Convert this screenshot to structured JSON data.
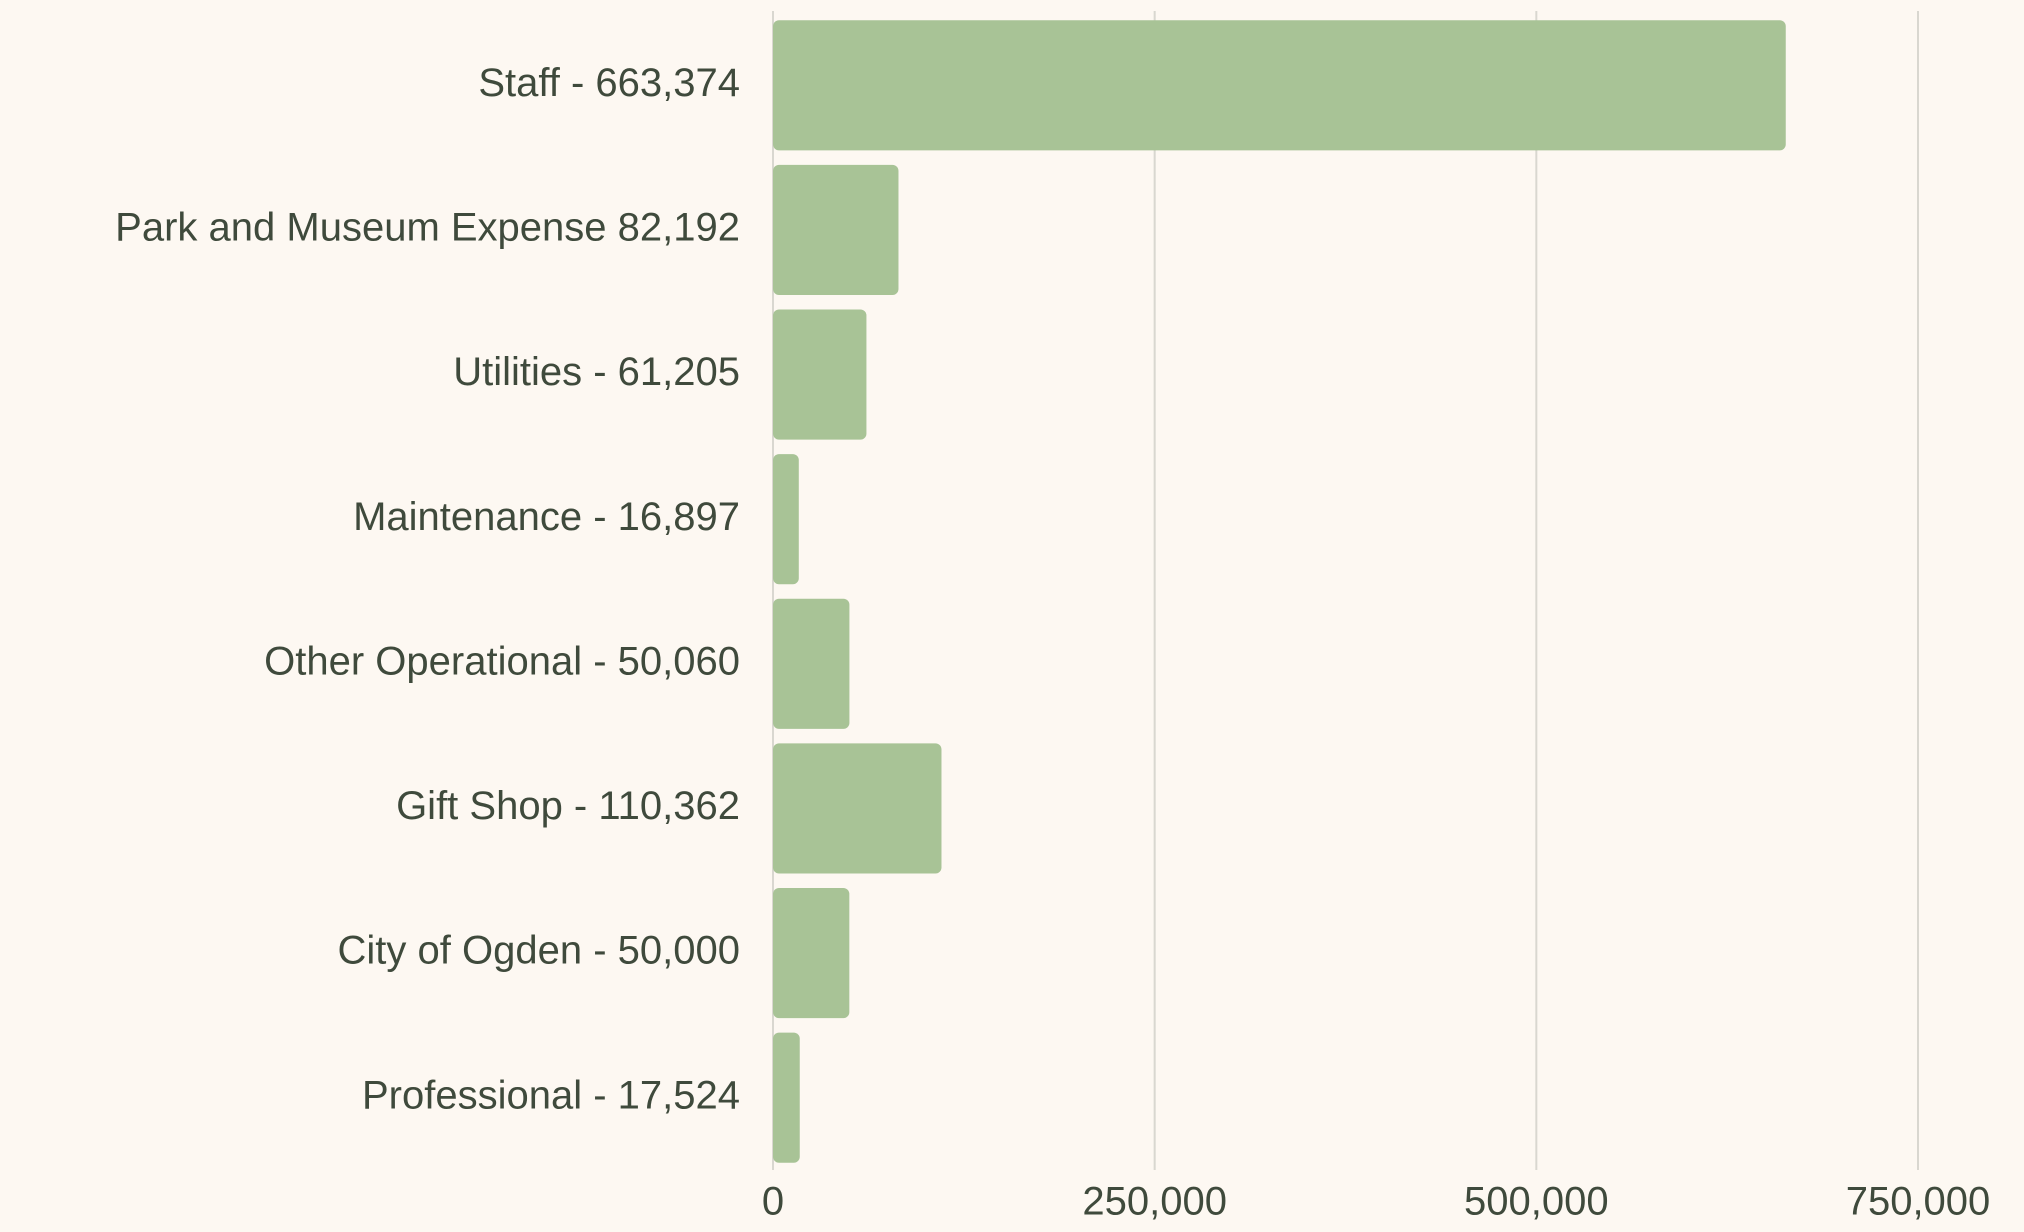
{
  "chart_data": {
    "type": "bar",
    "orientation": "horizontal",
    "categories": [
      "Staff - 663,374",
      "Park and Museum Expense 82,192",
      "Utilities - 61,205",
      "Maintenance - 16,897",
      "Other Operational - 50,060",
      "Gift Shop - 110,362",
      "City of Ogden - 50,000",
      "Professional - 17,524"
    ],
    "values": [
      663374,
      82192,
      61205,
      16897,
      50060,
      110362,
      50000,
      17524
    ],
    "color": "#a8c396",
    "xlim": [
      0,
      750000
    ],
    "xticks": [
      0,
      {
        "value": 250000,
        "label": "250,000"
      },
      {
        "value": 500000,
        "label": "500,000"
      },
      {
        "value": 750000,
        "label": "750,000"
      }
    ],
    "grid": true
  }
}
